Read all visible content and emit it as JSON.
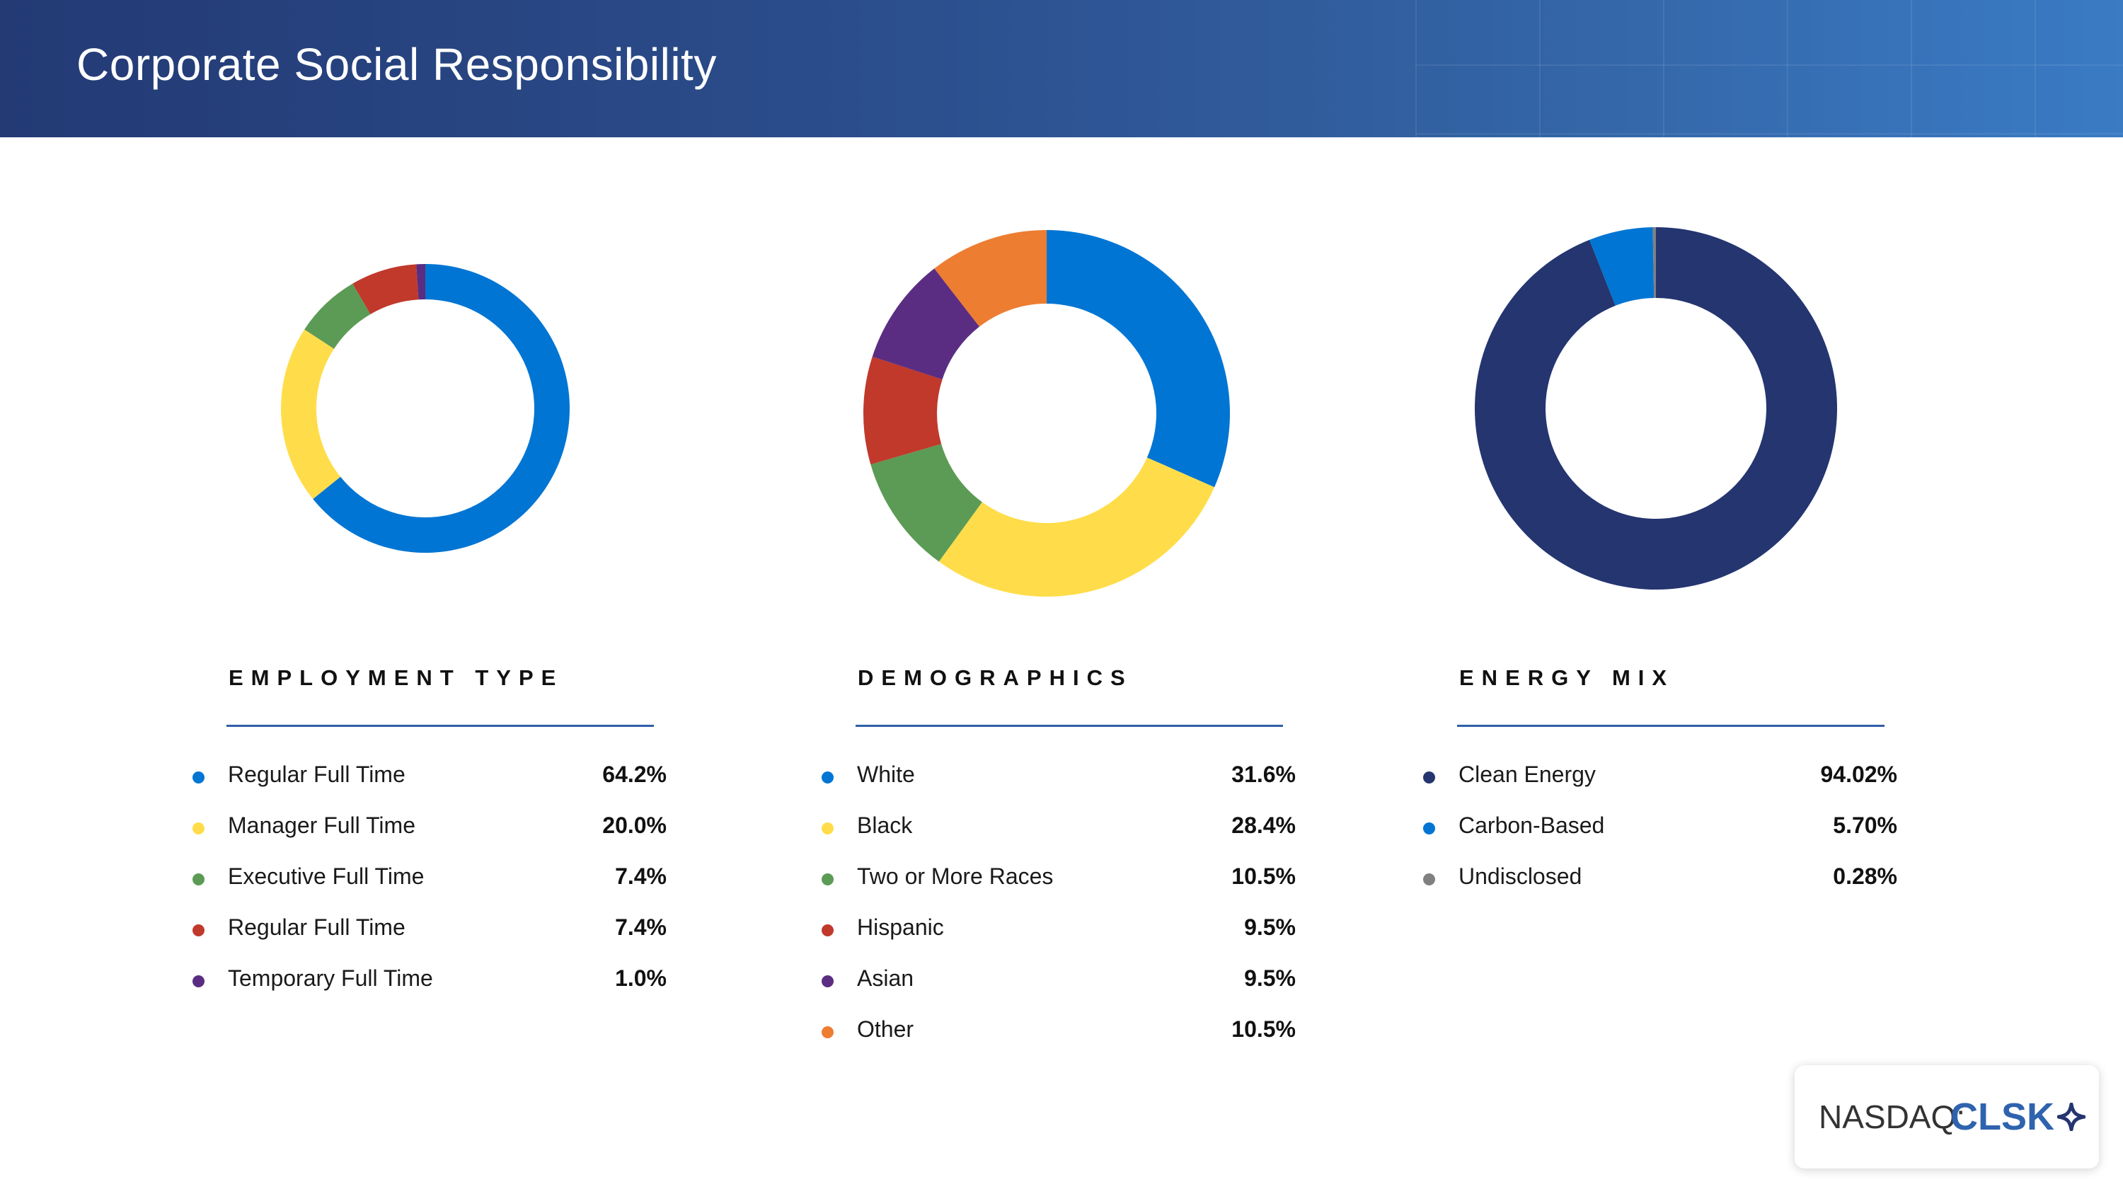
{
  "header": {
    "title": "Corporate Social Responsibility"
  },
  "chart_data": [
    {
      "type": "pie",
      "title": "EMPLOYMENT TYPE",
      "series": [
        {
          "name": "Regular Full Time",
          "value": 64.2,
          "value_label": "64.2%",
          "color": "#0075d3"
        },
        {
          "name": "Manager Full Time",
          "value": 20.0,
          "value_label": "20.0%",
          "color": "#ffdd4a"
        },
        {
          "name": "Executive Full Time",
          "value": 7.4,
          "value_label": "7.4%",
          "color": "#5c9b55"
        },
        {
          "name": "Regular Full Time",
          "value": 7.4,
          "value_label": "7.4%",
          "color": "#c0392b"
        },
        {
          "name": "Temporary Full Time",
          "value": 1.0,
          "value_label": "1.0%",
          "color": "#5b2d82"
        }
      ]
    },
    {
      "type": "pie",
      "title": "DEMOGRAPHICS",
      "series": [
        {
          "name": "White",
          "value": 31.6,
          "value_label": "31.6%",
          "color": "#0075d3"
        },
        {
          "name": "Black",
          "value": 28.4,
          "value_label": "28.4%",
          "color": "#ffdd4a"
        },
        {
          "name": "Two or More Races",
          "value": 10.5,
          "value_label": "10.5%",
          "color": "#5c9b55"
        },
        {
          "name": "Hispanic",
          "value": 9.5,
          "value_label": "9.5%",
          "color": "#c0392b"
        },
        {
          "name": "Asian",
          "value": 9.5,
          "value_label": "9.5%",
          "color": "#5b2d82"
        },
        {
          "name": "Other",
          "value": 10.5,
          "value_label": "10.5%",
          "color": "#ed7d31"
        }
      ]
    },
    {
      "type": "pie",
      "title": "ENERGY MIX",
      "series": [
        {
          "name": "Clean Energy",
          "value": 94.02,
          "value_label": "94.02%",
          "color": "#243570"
        },
        {
          "name": "Carbon-Based",
          "value": 5.7,
          "value_label": "5.70%",
          "color": "#0075d3"
        },
        {
          "name": "Undisclosed",
          "value": 0.28,
          "value_label": "0.28%",
          "color": "#808080"
        }
      ]
    }
  ],
  "ticker": {
    "prefix": "NASDAQ:",
    "symbol": "CLSK",
    "icon": "sparkle-icon",
    "icon_color": "#243570"
  }
}
